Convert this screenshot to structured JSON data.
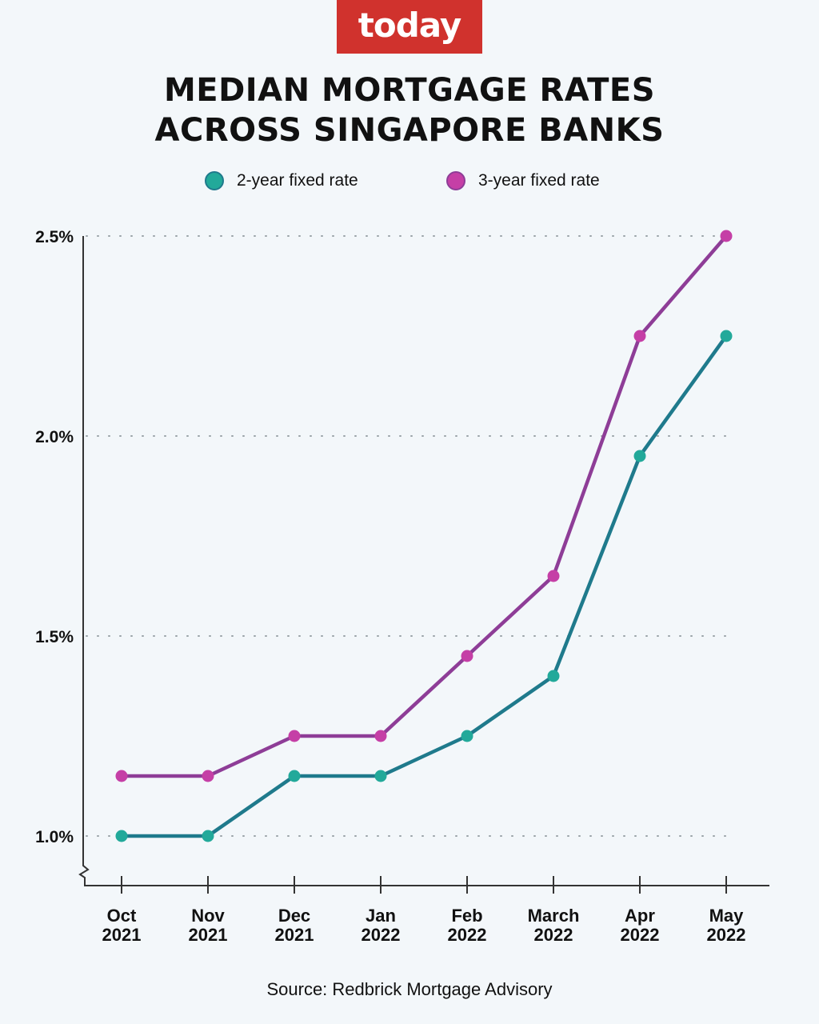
{
  "logo": "today",
  "chart_data": {
    "type": "line",
    "title": "MEDIAN MORTGAGE RATES ACROSS SINGAPORE BANKS",
    "title_lines": [
      "MEDIAN MORTGAGE RATES",
      "ACROSS SINGAPORE BANKS"
    ],
    "categories": [
      [
        "Oct",
        "2021"
      ],
      [
        "Nov",
        "2021"
      ],
      [
        "Dec",
        "2021"
      ],
      [
        "Jan",
        "2022"
      ],
      [
        "Feb",
        "2022"
      ],
      [
        "March",
        "2022"
      ],
      [
        "Apr",
        "2022"
      ],
      [
        "May",
        "2022"
      ]
    ],
    "series": [
      {
        "name": "2-year fixed rate",
        "values": [
          1.0,
          1.0,
          1.15,
          1.15,
          1.25,
          1.4,
          1.95,
          2.25
        ],
        "color": "#1f7a8c",
        "marker_color": "#22a99a"
      },
      {
        "name": "3-year fixed rate",
        "values": [
          1.15,
          1.15,
          1.25,
          1.25,
          1.45,
          1.65,
          2.25,
          2.5
        ],
        "color": "#8e3d97",
        "marker_color": "#c53fa6"
      }
    ],
    "yticks": [
      1.0,
      1.5,
      2.0,
      2.5
    ],
    "ytick_labels": [
      "1.0%",
      "1.5%",
      "2.0%",
      "2.5%"
    ],
    "ylim": [
      0.88,
      2.5
    ],
    "y_axis_break": true,
    "grid": "horizontal dotted",
    "legend": "top",
    "xlabel": "",
    "ylabel": ""
  },
  "source": "Source: Redbrick Mortgage Advisory"
}
